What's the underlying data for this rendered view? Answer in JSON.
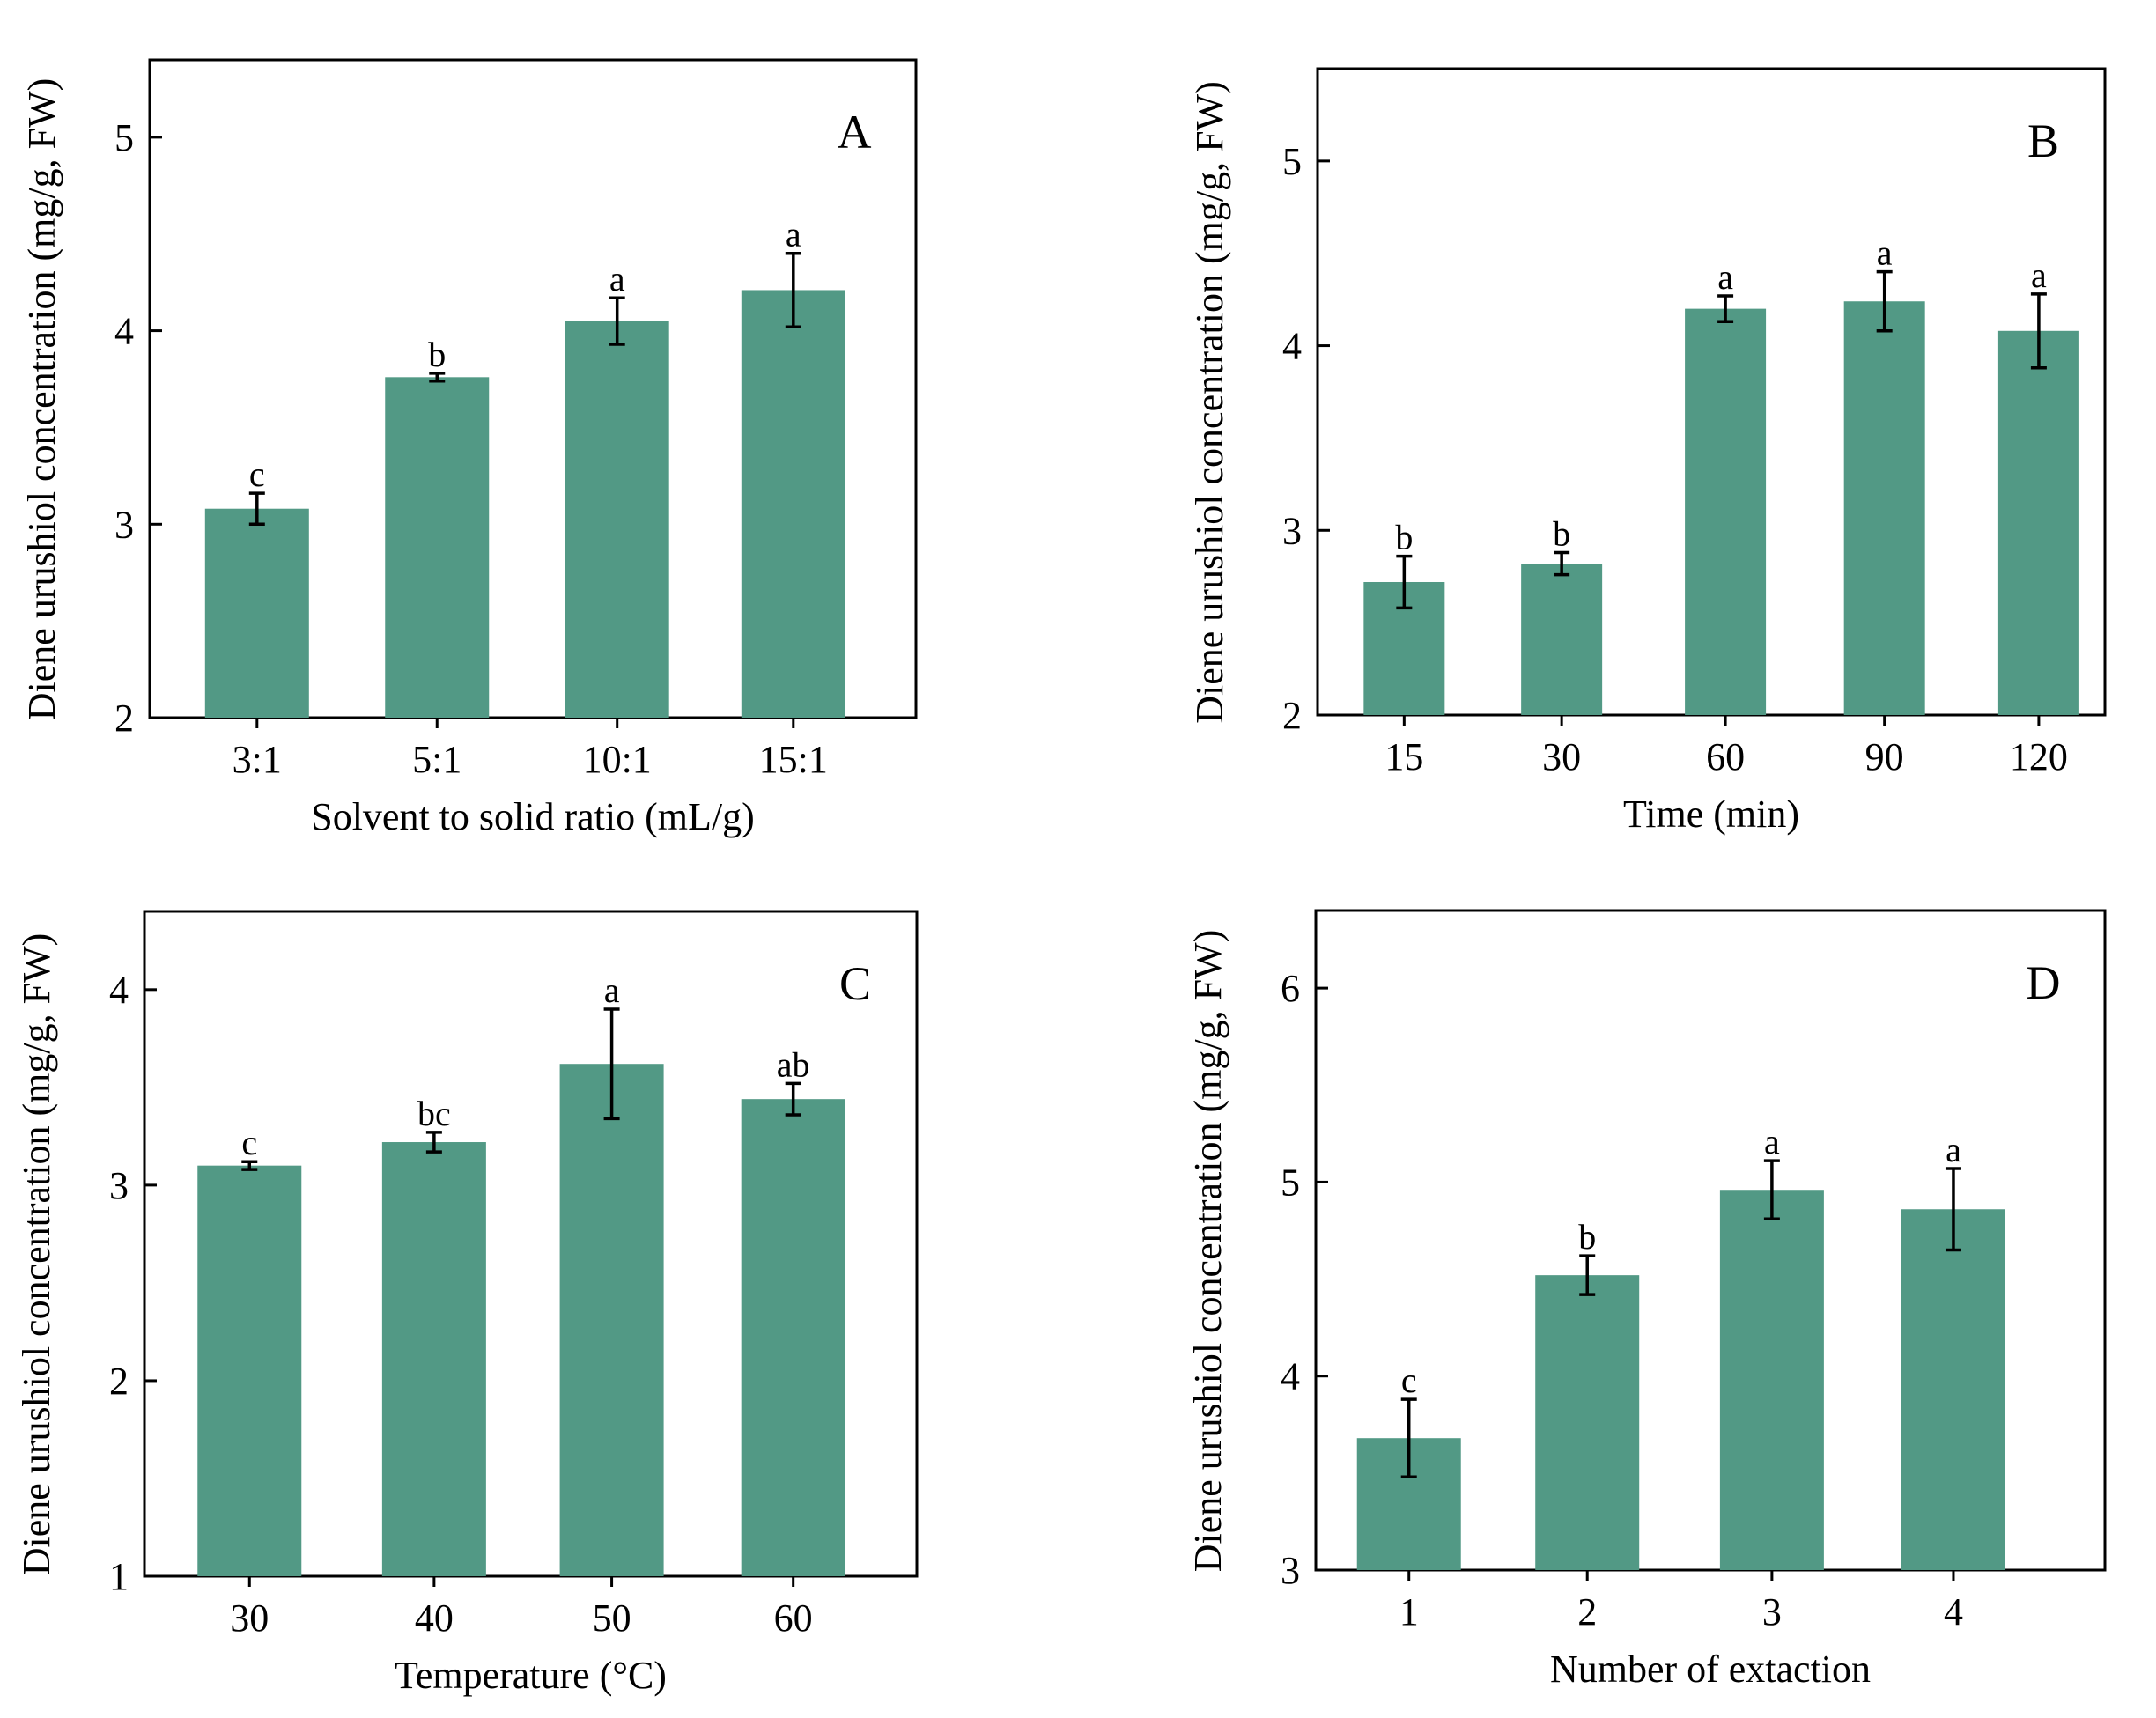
{
  "figure": {
    "y_axis_label": "Diene urushiol concentration (mg/g, FW)",
    "bar_color": "#529985"
  },
  "chart_data": [
    {
      "panel": "A",
      "type": "bar",
      "xlabel": "Solvent to solid ratio (mL/g)",
      "ylabel": "Diene urushiol concentration (mg/g, FW)",
      "ylim": [
        2,
        5.4
      ],
      "yticks": [
        2,
        3,
        4,
        5
      ],
      "categories": [
        "3:1",
        "5:1",
        "10:1",
        "15:1"
      ],
      "values": [
        3.08,
        3.76,
        4.05,
        4.21
      ],
      "errors": [
        0.08,
        0.02,
        0.12,
        0.19
      ],
      "letters": [
        "c",
        "b",
        "a",
        "a"
      ]
    },
    {
      "panel": "B",
      "type": "bar",
      "xlabel": "Time (min)",
      "ylabel": "Diene urushiol concentration (mg/g, FW)",
      "ylim": [
        2,
        5.5
      ],
      "yticks": [
        2,
        3,
        4,
        5
      ],
      "categories": [
        "15",
        "30",
        "60",
        "90",
        "120"
      ],
      "values": [
        2.72,
        2.82,
        4.2,
        4.24,
        4.08
      ],
      "errors": [
        0.14,
        0.06,
        0.07,
        0.16,
        0.2
      ],
      "letters": [
        "b",
        "b",
        "a",
        "a",
        "a"
      ]
    },
    {
      "panel": "C",
      "type": "bar",
      "xlabel": "Temperature (°C)",
      "ylabel": "Diene urushiol concentration (mg/g, FW)",
      "ylim": [
        1,
        4.4
      ],
      "yticks": [
        1,
        2,
        3,
        4
      ],
      "categories": [
        "30",
        "40",
        "50",
        "60"
      ],
      "values": [
        3.1,
        3.22,
        3.62,
        3.44
      ],
      "errors": [
        0.02,
        0.05,
        0.28,
        0.08
      ],
      "letters": [
        "c",
        "bc",
        "a",
        "ab"
      ]
    },
    {
      "panel": "D",
      "type": "bar",
      "xlabel": "Number of extaction",
      "ylabel": "Diene urushiol concentration (mg/g, FW)",
      "ylim": [
        3,
        6.4
      ],
      "yticks": [
        3,
        4,
        5,
        6
      ],
      "categories": [
        "1",
        "2",
        "3",
        "4"
      ],
      "values": [
        3.68,
        4.52,
        4.96,
        4.86
      ],
      "errors": [
        0.2,
        0.1,
        0.15,
        0.21
      ],
      "letters": [
        "c",
        "b",
        "a",
        "a"
      ]
    }
  ]
}
